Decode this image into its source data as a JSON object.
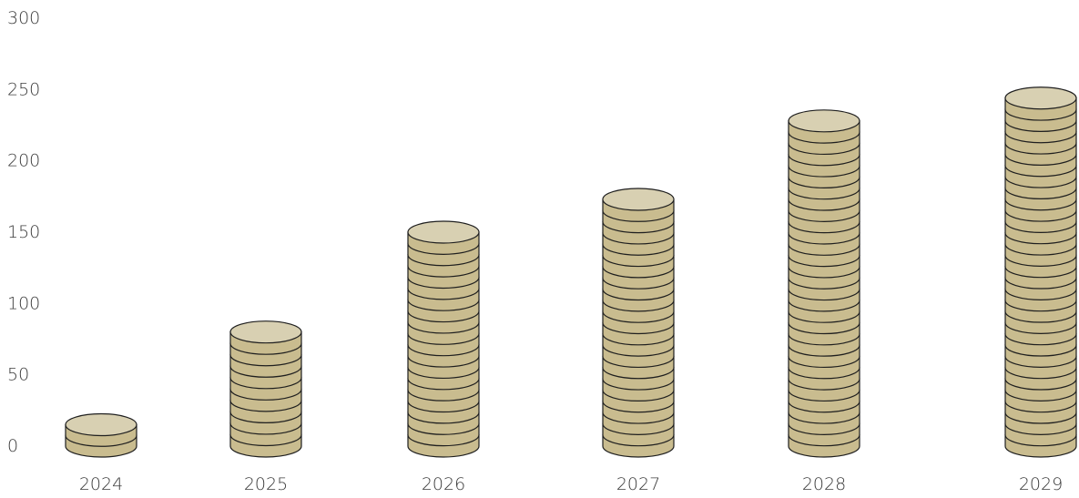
{
  "chart_data": {
    "type": "bar",
    "style": "coin-stacks",
    "categories": [
      "2024",
      "2025",
      "2026",
      "2027",
      "2028",
      "2029"
    ],
    "values": [
      15,
      80,
      150,
      173,
      228,
      244
    ],
    "ylim": [
      0,
      300
    ],
    "yticks": [
      0,
      50,
      100,
      150,
      200,
      250,
      300
    ],
    "title": "",
    "xlabel": "",
    "ylabel": "",
    "grid": false,
    "legend": "none",
    "colors": {
      "coin_side": "#c9bc8f",
      "coin_top": "#d8d0b2",
      "outline": "#1f1f1f",
      "label": "#3c3c3c"
    }
  }
}
